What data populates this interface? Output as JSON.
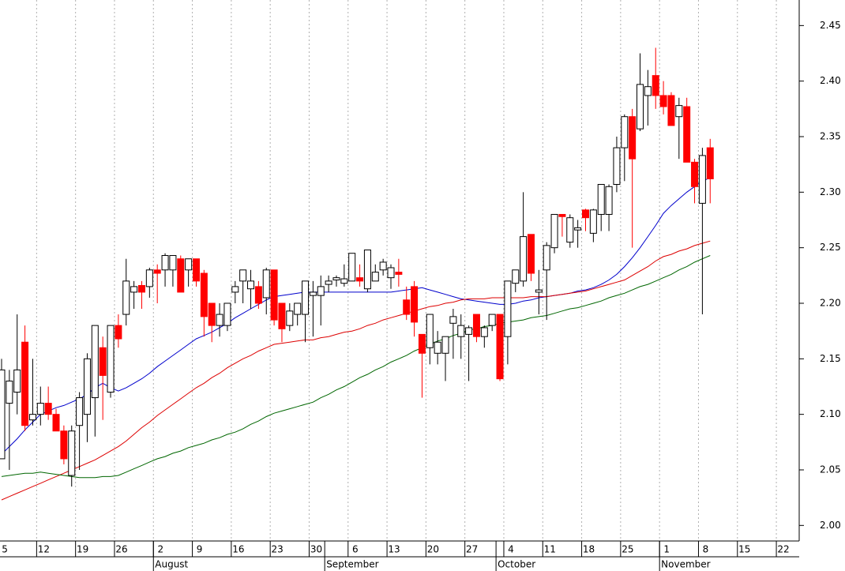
{
  "chart_data": {
    "type": "candlestick",
    "categories": [
      "Jul 5",
      "Jul 6",
      "Jul 7",
      "Jul 8",
      "Jul 9",
      "Jul 12",
      "Jul 13",
      "Jul 14",
      "Jul 15",
      "Jul 16",
      "Jul 19",
      "Jul 20",
      "Jul 21",
      "Jul 22",
      "Jul 23",
      "Jul 26",
      "Jul 27",
      "Jul 28",
      "Jul 29",
      "Jul 30",
      "Aug 2",
      "Aug 3",
      "Aug 4",
      "Aug 5",
      "Aug 6",
      "Aug 9",
      "Aug 10",
      "Aug 11",
      "Aug 12",
      "Aug 13",
      "Aug 16",
      "Aug 17",
      "Aug 18",
      "Aug 19",
      "Aug 20",
      "Aug 23",
      "Aug 24",
      "Aug 25",
      "Aug 26",
      "Aug 27",
      "Aug 30",
      "Aug 31",
      "Sep 1",
      "Sep 2",
      "Sep 3",
      "Sep 6",
      "Sep 7",
      "Sep 8",
      "Sep 9",
      "Sep 10",
      "Sep 13",
      "Sep 14",
      "Sep 15",
      "Sep 16",
      "Sep 17",
      "Sep 20",
      "Sep 21",
      "Sep 22",
      "Sep 23",
      "Sep 24",
      "Sep 27",
      "Sep 28",
      "Sep 29",
      "Sep 30",
      "Oct 1",
      "Oct 4",
      "Oct 5",
      "Oct 6",
      "Oct 7",
      "Oct 8",
      "Oct 11",
      "Oct 12",
      "Oct 13",
      "Oct 14",
      "Oct 15",
      "Oct 18",
      "Oct 19",
      "Oct 20",
      "Oct 21",
      "Oct 22",
      "Oct 25",
      "Oct 26",
      "Oct 27",
      "Oct 28",
      "Oct 29",
      "Nov 1",
      "Nov 2",
      "Nov 3",
      "Nov 4",
      "Nov 5",
      "Nov 8",
      "Nov 9",
      "Nov 10",
      "Nov 11",
      "Nov 12",
      "Nov 15",
      "Nov 16",
      "Nov 17",
      "Nov 18",
      "Nov 19",
      "Nov 22",
      "Nov 23",
      "Nov 24"
    ],
    "open": [
      2.06,
      2.11,
      2.12,
      2.165,
      2.095,
      2.1,
      2.11,
      2.1,
      2.085,
      2.045,
      2.09,
      2.1,
      2.115,
      2.16,
      2.12,
      2.18,
      2.19,
      2.21,
      2.216,
      2.215,
      2.23,
      2.23,
      2.23,
      2.24,
      2.23,
      2.24,
      2.227,
      2.2,
      2.18,
      2.18,
      2.21,
      2.22,
      2.213,
      2.215,
      2.205,
      2.23,
      2.2,
      2.18,
      2.19,
      2.19,
      2.207,
      2.207,
      2.217,
      2.221,
      2.218,
      2.22,
      2.223,
      2.213,
      2.22,
      2.23,
      2.223,
      2.228,
      2.203,
      2.215,
      2.172,
      2.16,
      2.155,
      2.155,
      2.182,
      2.17,
      2.172,
      2.19,
      2.17,
      2.18,
      2.19,
      2.17,
      2.218,
      2.22,
      2.262,
      2.21,
      2.23,
      2.25,
      2.28,
      2.255,
      2.266,
      2.284,
      2.263,
      2.28,
      2.28,
      2.307,
      2.34,
      2.368,
      2.357,
      2.387,
      2.405,
      2.387,
      2.387,
      2.368,
      2.377,
      2.327,
      2.29,
      2.34,
      null,
      null,
      null,
      null,
      null,
      null,
      null,
      null,
      null,
      null,
      null
    ],
    "high": [
      2.15,
      2.14,
      2.19,
      2.18,
      2.15,
      2.125,
      2.125,
      2.105,
      2.09,
      2.09,
      2.12,
      2.155,
      2.18,
      2.17,
      2.18,
      2.19,
      2.24,
      2.22,
      2.22,
      2.232,
      2.235,
      2.245,
      2.243,
      2.243,
      2.24,
      2.24,
      2.23,
      2.2,
      2.2,
      2.2,
      2.22,
      2.23,
      2.23,
      2.22,
      2.232,
      2.23,
      2.2,
      2.2,
      2.2,
      2.22,
      2.22,
      2.225,
      2.225,
      2.225,
      2.235,
      2.245,
      2.235,
      2.248,
      2.235,
      2.24,
      2.235,
      2.24,
      2.215,
      2.22,
      2.172,
      2.19,
      2.175,
      2.17,
      2.195,
      2.19,
      2.18,
      2.19,
      2.18,
      2.19,
      2.19,
      2.22,
      2.23,
      2.3,
      2.262,
      2.23,
      2.255,
      2.28,
      2.28,
      2.28,
      2.275,
      2.285,
      2.285,
      2.307,
      2.307,
      2.35,
      2.37,
      2.375,
      2.425,
      2.41,
      2.43,
      2.4,
      2.39,
      2.385,
      2.385,
      2.33,
      2.34,
      2.348,
      null,
      null,
      null,
      null,
      null,
      null,
      null,
      null,
      null,
      null,
      null
    ],
    "low": [
      2.06,
      2.05,
      2.1,
      2.085,
      2.09,
      2.09,
      2.095,
      2.085,
      2.055,
      2.035,
      2.05,
      2.075,
      2.08,
      2.095,
      2.115,
      2.16,
      2.18,
      2.195,
      2.195,
      2.205,
      2.2,
      2.215,
      2.215,
      2.21,
      2.215,
      2.215,
      2.17,
      2.165,
      2.17,
      2.175,
      2.2,
      2.2,
      2.195,
      2.195,
      2.19,
      2.18,
      2.165,
      2.175,
      2.18,
      2.165,
      2.17,
      2.18,
      2.21,
      2.215,
      2.215,
      2.22,
      2.215,
      2.21,
      2.22,
      2.225,
      2.213,
      2.215,
      2.185,
      2.17,
      2.115,
      2.145,
      2.145,
      2.13,
      2.15,
      2.15,
      2.13,
      2.165,
      2.16,
      2.175,
      2.13,
      2.145,
      2.21,
      2.215,
      2.22,
      2.19,
      2.185,
      2.245,
      2.26,
      2.25,
      2.25,
      2.265,
      2.255,
      2.265,
      2.265,
      2.3,
      2.31,
      2.25,
      2.355,
      2.36,
      2.375,
      2.37,
      2.36,
      2.33,
      2.327,
      2.29,
      2.19,
      2.29,
      null,
      null,
      null,
      null,
      null,
      null,
      null,
      null,
      null,
      null,
      null
    ],
    "close": [
      2.14,
      2.13,
      2.14,
      2.09,
      2.1,
      2.11,
      2.1,
      2.085,
      2.06,
      2.085,
      2.115,
      2.15,
      2.18,
      2.135,
      2.18,
      2.168,
      2.22,
      2.215,
      2.21,
      2.23,
      2.227,
      2.243,
      2.243,
      2.21,
      2.24,
      2.22,
      2.188,
      2.18,
      2.19,
      2.2,
      2.215,
      2.23,
      2.22,
      2.2,
      2.23,
      2.185,
      2.177,
      2.193,
      2.2,
      2.22,
      2.21,
      2.215,
      2.22,
      2.223,
      2.222,
      2.245,
      2.22,
      2.248,
      2.228,
      2.237,
      2.232,
      2.226,
      2.19,
      2.183,
      2.155,
      2.19,
      2.165,
      2.17,
      2.188,
      2.18,
      2.178,
      2.17,
      2.178,
      2.19,
      2.132,
      2.22,
      2.23,
      2.26,
      2.227,
      2.212,
      2.252,
      2.28,
      2.278,
      2.277,
      2.268,
      2.277,
      2.284,
      2.307,
      2.305,
      2.34,
      2.368,
      2.33,
      2.397,
      2.395,
      2.387,
      2.377,
      2.36,
      2.378,
      2.327,
      2.305,
      2.333,
      2.312,
      null,
      null,
      null,
      null,
      null,
      null,
      null,
      null,
      null,
      null,
      null
    ],
    "up_color": "#ffffff",
    "down_color": "#ff0000",
    "series": [
      {
        "color": "#0000cc",
        "values": [
          2.064,
          2.071,
          2.078,
          2.086,
          2.093,
          2.1,
          2.103,
          2.106,
          2.108,
          2.111,
          2.114,
          2.118,
          2.124,
          2.128,
          2.124,
          2.121,
          2.124,
          2.128,
          2.132,
          2.137,
          2.143,
          2.148,
          2.153,
          2.158,
          2.163,
          2.168,
          2.171,
          2.174,
          2.178,
          2.182,
          2.187,
          2.191,
          2.195,
          2.199,
          2.203,
          2.206,
          2.207,
          2.208,
          2.209,
          2.21,
          2.21,
          2.21,
          2.21,
          2.21,
          2.21,
          2.21,
          2.21,
          2.21,
          2.21,
          2.21,
          2.21,
          2.211,
          2.212,
          2.213,
          2.214,
          2.212,
          2.21,
          2.208,
          2.206,
          2.204,
          2.203,
          2.202,
          2.201,
          2.2,
          2.199,
          2.199,
          2.2,
          2.202,
          2.203,
          2.205,
          2.206,
          2.207,
          2.208,
          2.209,
          2.211,
          2.212,
          2.214,
          2.217,
          2.221,
          2.226,
          2.233,
          2.241,
          2.25,
          2.26,
          2.27,
          2.281,
          2.288,
          2.294,
          2.3,
          2.305,
          2.31,
          2.313,
          null,
          null,
          null,
          null,
          null,
          null,
          null,
          null,
          null,
          null,
          null
        ]
      },
      {
        "color": "#dd0000",
        "values": [
          2.023,
          2.026,
          2.029,
          2.032,
          2.035,
          2.038,
          2.041,
          2.044,
          2.047,
          2.05,
          2.053,
          2.056,
          2.059,
          2.063,
          2.067,
          2.071,
          2.076,
          2.082,
          2.088,
          2.093,
          2.099,
          2.104,
          2.109,
          2.114,
          2.119,
          2.124,
          2.128,
          2.133,
          2.137,
          2.142,
          2.146,
          2.15,
          2.153,
          2.157,
          2.16,
          2.163,
          2.164,
          2.165,
          2.166,
          2.167,
          2.167,
          2.169,
          2.17,
          2.172,
          2.174,
          2.175,
          2.177,
          2.18,
          2.182,
          2.185,
          2.187,
          2.189,
          2.191,
          2.193,
          2.195,
          2.197,
          2.198,
          2.2,
          2.201,
          2.203,
          2.204,
          2.204,
          2.204,
          2.205,
          2.205,
          2.205,
          2.205,
          2.205,
          2.206,
          2.206,
          2.206,
          2.207,
          2.208,
          2.209,
          2.21,
          2.211,
          2.213,
          2.215,
          2.217,
          2.219,
          2.221,
          2.225,
          2.229,
          2.233,
          2.238,
          2.242,
          2.244,
          2.247,
          2.249,
          2.252,
          2.254,
          2.256,
          null,
          null,
          null,
          null,
          null,
          null,
          null,
          null,
          null,
          null,
          null
        ]
      },
      {
        "color": "#006600",
        "values": [
          2.044,
          2.045,
          2.046,
          2.047,
          2.047,
          2.048,
          2.047,
          2.046,
          2.045,
          2.044,
          2.043,
          2.043,
          2.043,
          2.044,
          2.044,
          2.045,
          2.048,
          2.051,
          2.054,
          2.057,
          2.06,
          2.062,
          2.065,
          2.067,
          2.07,
          2.072,
          2.074,
          2.077,
          2.079,
          2.082,
          2.084,
          2.087,
          2.091,
          2.094,
          2.098,
          2.101,
          2.103,
          2.105,
          2.107,
          2.109,
          2.111,
          2.115,
          2.118,
          2.122,
          2.125,
          2.129,
          2.133,
          2.136,
          2.14,
          2.143,
          2.147,
          2.15,
          2.153,
          2.157,
          2.16,
          2.163,
          2.166,
          2.168,
          2.171,
          2.173,
          2.176,
          2.177,
          2.179,
          2.18,
          2.182,
          2.183,
          2.184,
          2.185,
          2.187,
          2.188,
          2.189,
          2.191,
          2.193,
          2.195,
          2.196,
          2.198,
          2.2,
          2.202,
          2.205,
          2.207,
          2.209,
          2.212,
          2.215,
          2.217,
          2.22,
          2.223,
          2.226,
          2.23,
          2.233,
          2.237,
          2.24,
          2.243,
          null,
          null,
          null,
          null,
          null,
          null,
          null,
          null,
          null,
          null,
          null
        ]
      }
    ],
    "ylim": [
      1.986,
      2.473
    ],
    "yticks": [
      {
        "value": 2,
        "label": "2.00"
      },
      {
        "value": 2.05,
        "label": "2.05"
      },
      {
        "value": 2.1,
        "label": "2.10"
      },
      {
        "value": 2.15,
        "label": "2.15"
      },
      {
        "value": 2.2,
        "label": "2.20"
      },
      {
        "value": 2.25,
        "label": "2.25"
      },
      {
        "value": 2.3,
        "label": "2.30"
      },
      {
        "value": 2.35,
        "label": "2.35"
      },
      {
        "value": 2.4,
        "label": "2.40"
      },
      {
        "value": 2.45,
        "label": "2.45"
      }
    ],
    "xticks": [
      {
        "value": "Jul 5",
        "label": "5"
      },
      {
        "value": "Jul 12",
        "label": "12"
      },
      {
        "value": "Jul 19",
        "label": "19"
      },
      {
        "value": "Jul 26",
        "label": "26"
      },
      {
        "value": "Aug 2",
        "label": "2"
      },
      {
        "value": "Aug 9",
        "label": "9"
      },
      {
        "value": "Aug 16",
        "label": "16"
      },
      {
        "value": "Aug 23",
        "label": "23"
      },
      {
        "value": "Aug 30",
        "label": "30"
      },
      {
        "value": "Sep 6",
        "label": "6"
      },
      {
        "value": "Sep 13",
        "label": "13"
      },
      {
        "value": "Sep 20",
        "label": "20"
      },
      {
        "value": "Sep 27",
        "label": "27"
      },
      {
        "value": "Oct 4",
        "label": "4"
      },
      {
        "value": "Oct 11",
        "label": "11"
      },
      {
        "value": "Oct 18",
        "label": "18"
      },
      {
        "value": "Oct 25",
        "label": "25"
      },
      {
        "value": "Nov 1",
        "label": "1"
      },
      {
        "value": "Nov 8",
        "label": "8"
      },
      {
        "value": "Nov 15",
        "label": "15"
      },
      {
        "value": "Nov 22",
        "label": "22"
      }
    ],
    "month_ticks": [
      {
        "value": "Aug 2",
        "label": "August"
      },
      {
        "value": "Sep 1",
        "label": "September"
      },
      {
        "value": "Oct 1",
        "label": "October"
      },
      {
        "value": "Nov 1",
        "label": "November"
      }
    ],
    "grid": true
  }
}
